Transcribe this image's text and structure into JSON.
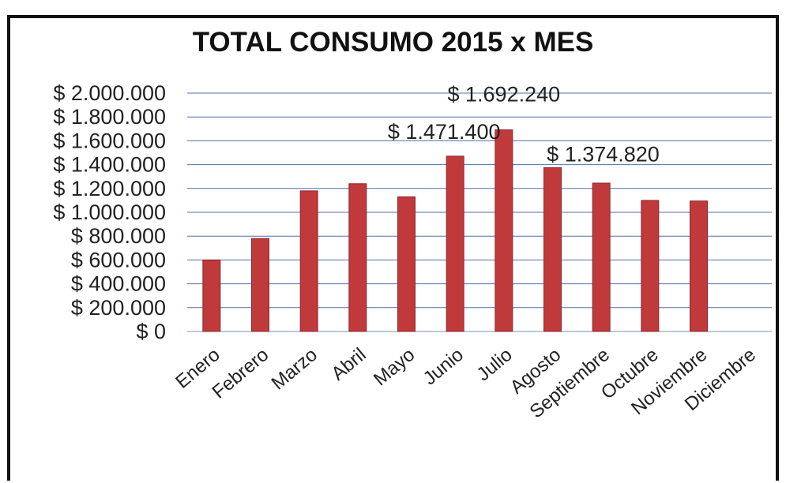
{
  "chart_data": {
    "type": "bar",
    "title": "TOTAL CONSUMO 2015 x MES",
    "xlabel": "",
    "ylabel": "",
    "categories": [
      "Enero",
      "Febrero",
      "Marzo",
      "Abril",
      "Mayo",
      "Junio",
      "Julio",
      "Agosto",
      "Septiembre",
      "Octubre",
      "Noviembre",
      "Diciembre"
    ],
    "values": [
      600000,
      780000,
      1180000,
      1240000,
      1130000,
      1471400,
      1692240,
      1374820,
      1245000,
      1100000,
      1095000,
      null
    ],
    "data_labels": [
      {
        "category": "Junio",
        "text": "$ 1.471.400"
      },
      {
        "category": "Julio",
        "text": "$ 1.692.240"
      },
      {
        "category": "Agosto",
        "text": "$ 1.374.820"
      }
    ],
    "ylim": [
      0,
      2000000
    ],
    "yticks": [
      0,
      200000,
      400000,
      600000,
      800000,
      1000000,
      1200000,
      1400000,
      1600000,
      1800000,
      2000000
    ],
    "ytick_labels": [
      "$ 0",
      "$ 200.000",
      "$ 400.000",
      "$ 600.000",
      "$ 800.000",
      "$ 1.000.000",
      "$ 1.200.000",
      "$ 1.400.000",
      "$ 1.600.000",
      "$ 1.800.000",
      "$ 2.000.000"
    ],
    "grid": true,
    "legend": "none",
    "colors": {
      "bar": "#c0393b",
      "bar_edge": "#8e2a2d",
      "grid": "#4f6fa8",
      "axis": "#7a8fb5"
    }
  }
}
